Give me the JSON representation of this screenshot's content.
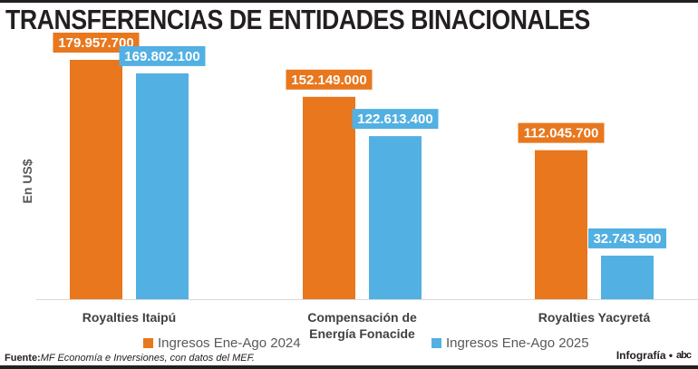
{
  "header": {
    "title": "TRANSFERENCIAS DE ENTIDADES BINACIONALES"
  },
  "colors": {
    "series_2024": "#e8771e",
    "series_2025": "#53b0e2",
    "axis": "#d9d9d9"
  },
  "chart_data": {
    "type": "bar",
    "title": "TRANSFERENCIAS DE ENTIDADES BINACIONALES",
    "xlabel": "",
    "ylabel": "En US$",
    "ylim": [
      0,
      180000000
    ],
    "grid": false,
    "legend_position": "bottom-center",
    "categories": [
      "Royalties Itaipú",
      "Compensación de Energía Fonacide",
      "Royalties Yacyretá"
    ],
    "category_lines": [
      [
        "Royalties Itaipú"
      ],
      [
        "Compensación de",
        "Energía Fonacide"
      ],
      [
        "Royalties Yacyretá"
      ]
    ],
    "series": [
      {
        "name": "Ingresos Ene-Ago 2024",
        "color": "#e8771e",
        "values": [
          179957700,
          152149000,
          112045700
        ],
        "labels": [
          "179.957.700",
          "152.149.000",
          "112.045.700"
        ]
      },
      {
        "name": "Ingresos Ene-Ago 2025",
        "color": "#53b0e2",
        "values": [
          169802100,
          122613400,
          32743500
        ],
        "labels": [
          "169.802.100",
          "122.613.400",
          "32.743.500"
        ]
      }
    ]
  },
  "legend": {
    "item_2024": "Ingresos Ene-Ago 2024",
    "item_2025": "Ingresos Ene-Ago 2025"
  },
  "footer": {
    "source_label": "Fuente:",
    "source_text": "MF Economía e Inversiones, con datos del MEF.",
    "credit": "Infografía •",
    "logo": "abc"
  }
}
